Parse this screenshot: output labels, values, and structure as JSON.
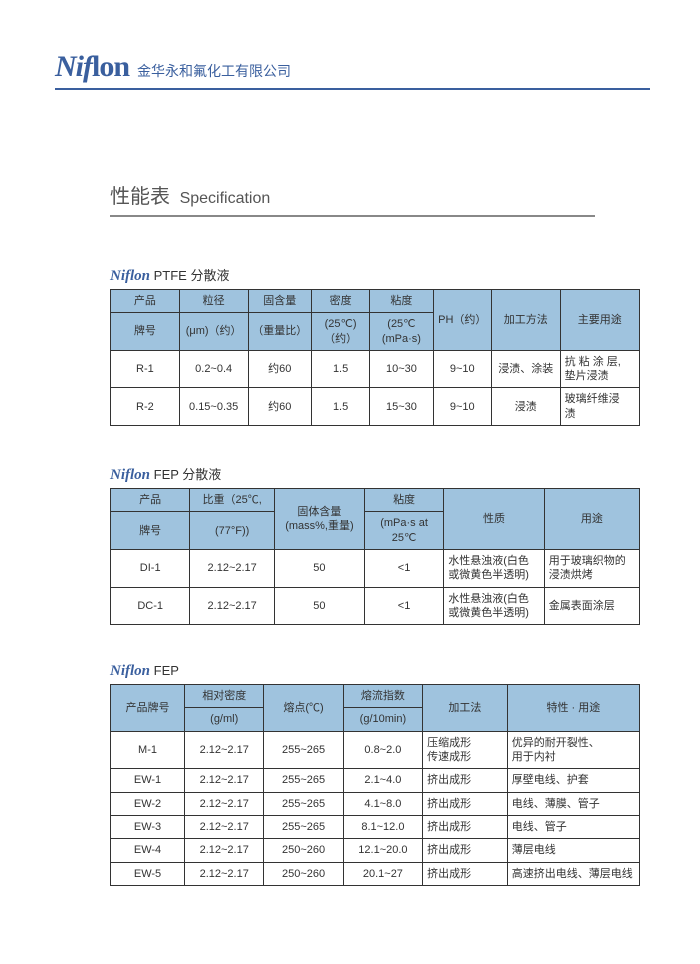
{
  "brand": {
    "logo_prefix": "Nif",
    "logo_suffix": "lon",
    "company": "金华永和氟化工有限公司"
  },
  "spec_heading": {
    "cn": "性能表",
    "en": "Specification"
  },
  "colors": {
    "accent": "#3a5f9e",
    "header_bg": "#9fc3de",
    "border": "#333333",
    "text": "#333333"
  },
  "table1": {
    "title_suffix": " PTFE 分散液",
    "head": {
      "product": "产品",
      "particle": "粒径",
      "solid": "固含量",
      "density": "密度",
      "viscosity": "粘度",
      "ph": "PH（约）",
      "process": "加工方法",
      "use": "主要用途",
      "grade": "牌号",
      "particle_sub": "(μm)（约）",
      "solid_sub": "（重量比）",
      "density_sub": "(25℃)\n（约）",
      "viscosity_sub": "(25℃\n(mPa·s)"
    },
    "rows": [
      {
        "grade": "R-1",
        "particle": "0.2~0.4",
        "solid": "约60",
        "density": "1.5",
        "visc": "10~30",
        "ph": "9~10",
        "process": "浸渍、涂装",
        "use": "抗 粘 涂 层,\n垫片浸渍"
      },
      {
        "grade": "R-2",
        "particle": "0.15~0.35",
        "solid": "约60",
        "density": "1.5",
        "visc": "15~30",
        "ph": "9~10",
        "process": "浸渍",
        "use": "玻璃纤维浸\n渍"
      }
    ]
  },
  "table2": {
    "title_suffix": " FEP 分散液",
    "head": {
      "product": "产品",
      "sg": "比重（25℃,",
      "solid": "固体含量\n(mass%,重量)",
      "visc": "粘度",
      "nature": "性质",
      "use": "用途",
      "grade": "牌号",
      "sg_sub": "(77°F))",
      "visc_sub": "(mPa·s at\n25℃"
    },
    "rows": [
      {
        "grade": "DI-1",
        "sg": "2.12~2.17",
        "solid": "50",
        "visc": "<1",
        "nature": "水性悬浊液(白色\n或微黄色半透明)",
        "use": "用于玻璃织物的\n浸渍烘烤"
      },
      {
        "grade": "DC-1",
        "sg": "2.12~2.17",
        "solid": "50",
        "visc": "<1",
        "nature": "水性悬浊液(白色\n或微黄色半透明)",
        "use": "金属表面涂层"
      }
    ]
  },
  "table3": {
    "title_suffix": " FEP",
    "head": {
      "grade": "产品牌号",
      "density": "相对密度",
      "mp": "熔点(℃)",
      "mfi": "熔流指数",
      "process": "加工法",
      "use": "特性 · 用途",
      "density_sub": "(g/ml)",
      "mfi_sub": "(g/10min)"
    },
    "rows": [
      {
        "grade": "M-1",
        "d": "2.12~2.17",
        "mp": "255~265",
        "mfi": "0.8~2.0",
        "proc": "压缩成形\n传速成形",
        "use": "优异的耐开裂性、\n用于内衬"
      },
      {
        "grade": "EW-1",
        "d": "2.12~2.17",
        "mp": "255~265",
        "mfi": "2.1~4.0",
        "proc": "挤出成形",
        "use": "厚壁电线、护套"
      },
      {
        "grade": "EW-2",
        "d": "2.12~2.17",
        "mp": "255~265",
        "mfi": "4.1~8.0",
        "proc": "挤出成形",
        "use": "电线、薄膜、管子"
      },
      {
        "grade": "EW-3",
        "d": "2.12~2.17",
        "mp": "255~265",
        "mfi": "8.1~12.0",
        "proc": "挤出成形",
        "use": "电线、管子"
      },
      {
        "grade": "EW-4",
        "d": "2.12~2.17",
        "mp": "250~260",
        "mfi": "12.1~20.0",
        "proc": "挤出成形",
        "use": "薄层电线"
      },
      {
        "grade": "EW-5",
        "d": "2.12~2.17",
        "mp": "250~260",
        "mfi": "20.1~27",
        "proc": "挤出成形",
        "use": "高速挤出电线、薄层电线"
      }
    ]
  }
}
